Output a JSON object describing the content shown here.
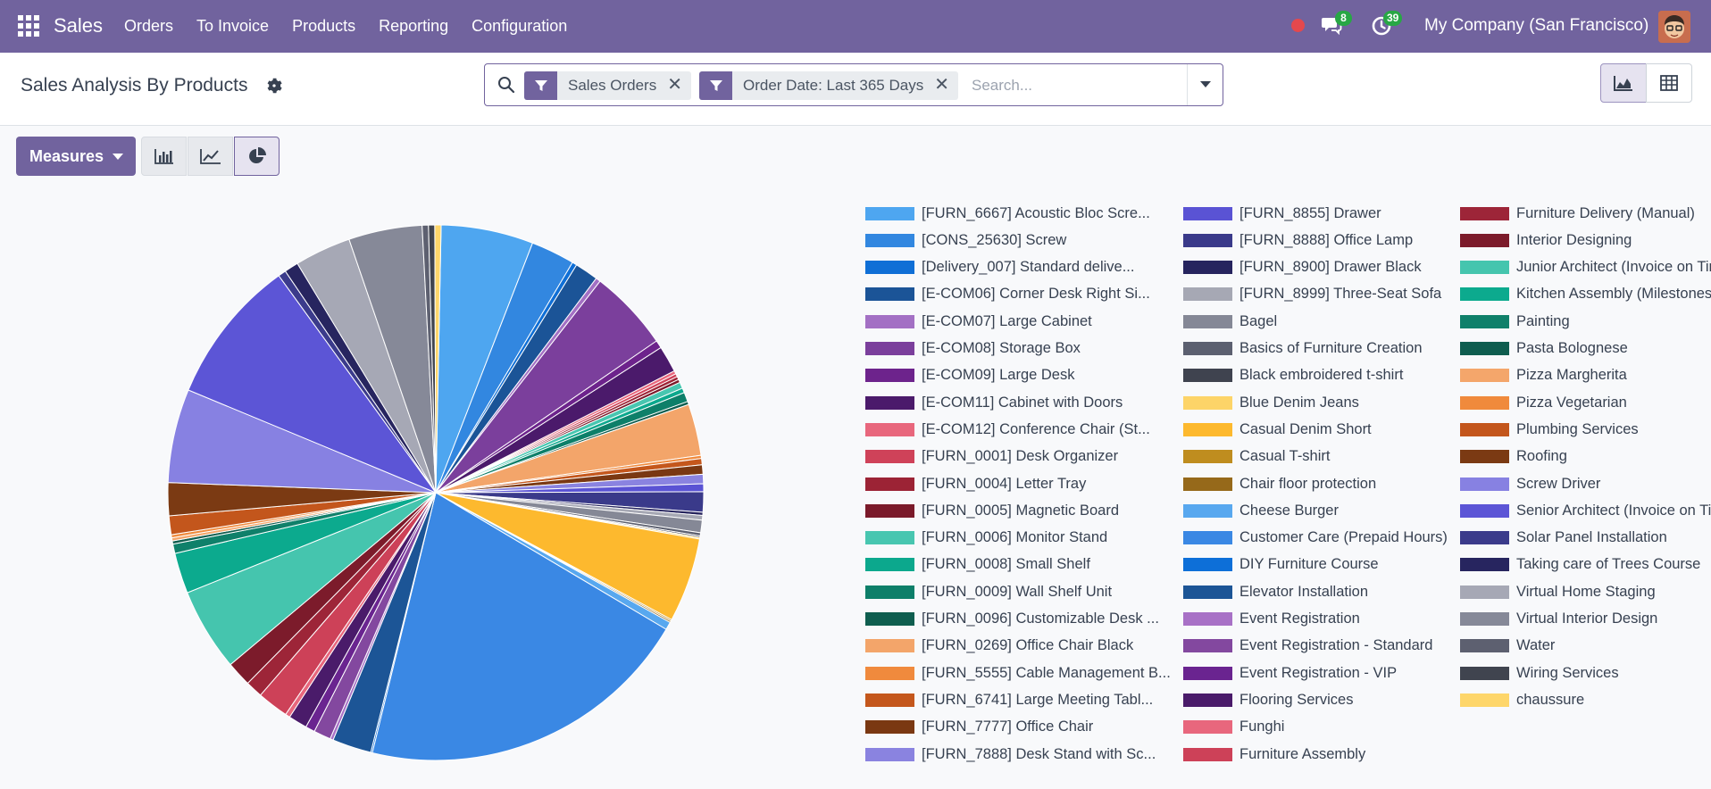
{
  "navbar": {
    "app_name": "Sales",
    "menu": [
      "Orders",
      "To Invoice",
      "Products",
      "Reporting",
      "Configuration"
    ],
    "messages_count": "8",
    "activities_count": "39",
    "company": "My Company (San Francisco)",
    "accent_color": "#71639e"
  },
  "control_panel": {
    "title": "Sales Analysis By Products",
    "facets": [
      {
        "label": "Sales Orders"
      },
      {
        "label": "Order Date: Last 365 Days"
      }
    ],
    "search_placeholder": "Search...",
    "views": [
      "graph",
      "pivot"
    ],
    "active_view": "graph"
  },
  "graph_toolbar": {
    "measures_label": "Measures",
    "chart_modes": [
      "bar",
      "line",
      "pie"
    ],
    "active_mode": "pie"
  },
  "chart_data": {
    "type": "pie",
    "legend_position": "right",
    "slices": [
      {
        "label": "[FURN_6667] Acoustic Bloc Scre...",
        "color": "#4ea6f0",
        "value": 5.9
      },
      {
        "label": "[CONS_25630] Screw",
        "color": "#3287e0",
        "value": 2.8
      },
      {
        "label": "[Delivery_007] Standard delive...",
        "color": "#0f6fd6",
        "value": 0.3
      },
      {
        "label": "[E-COM06] Corner Desk Right Si...",
        "color": "#1b5497",
        "value": 1.5
      },
      {
        "label": "[E-COM07] Large Cabinet",
        "color": "#a370c4",
        "value": 0.3
      },
      {
        "label": "[E-COM08] Storage Box",
        "color": "#7b3f9c",
        "value": 5.2
      },
      {
        "label": "[E-COM09] Large Desk",
        "color": "#6d238c",
        "value": 0.5
      },
      {
        "label": "[E-COM11] Cabinet with Doors",
        "color": "#4b1a6b",
        "value": 1.7
      },
      {
        "label": "[E-COM12] Conference Chair (St...",
        "color": "#e8677d",
        "value": 0.2
      },
      {
        "label": "[FURN_0001] Desk Organizer",
        "color": "#cf4259",
        "value": 0.2
      },
      {
        "label": "[FURN_0004] Letter Tray",
        "color": "#9c2335",
        "value": 0.2
      },
      {
        "label": "[FURN_0005] Magnetic Board",
        "color": "#7b1a2a",
        "value": 0.2
      },
      {
        "label": "[FURN_0006] Monitor Stand",
        "color": "#48c6b0",
        "value": 0.4
      },
      {
        "label": "[FURN_0008] Small Shelf",
        "color": "#0ca88d",
        "value": 0.3
      },
      {
        "label": "[FURN_0009] Wall Shelf Unit",
        "color": "#0d7f69",
        "value": 0.6
      },
      {
        "label": "[FURN_0096] Customizable Desk ...",
        "color": "#0f5e4f",
        "value": 0.2
      },
      {
        "label": "[FURN_0269] Office Chair Black",
        "color": "#f3a56a",
        "value": 3.3
      },
      {
        "label": "[FURN_5555] Cable Management B...",
        "color": "#f08a3d",
        "value": 0.2
      },
      {
        "label": "[FURN_6741] Large Meeting Tabl...",
        "color": "#c4571c",
        "value": 0.4
      },
      {
        "label": "[FURN_7777] Office Chair",
        "color": "#7a3812",
        "value": 0.6
      },
      {
        "label": "[FURN_7888] Desk Stand with Sc...",
        "color": "#8a83e0",
        "value": 0.6
      },
      {
        "label": "[FURN_8855] Drawer",
        "color": "#5a53d4",
        "value": 0.5
      },
      {
        "label": "[FURN_8888] Office Lamp",
        "color": "#3a3a8a",
        "value": 1.3
      },
      {
        "label": "[FURN_8900] Drawer Black",
        "color": "#26245e",
        "value": 0.2
      },
      {
        "label": "[FURN_8999] Three-Seat Sofa",
        "color": "#a6a8b4",
        "value": 0.3
      },
      {
        "label": "Bagel",
        "color": "#858896",
        "value": 0.8
      },
      {
        "label": "Basics of Furniture Creation",
        "color": "#5c6070",
        "value": 0.2
      },
      {
        "label": "Black embroidered t-shirt",
        "color": "#3f434f",
        "value": 0.1
      },
      {
        "label": "Blue Denim Jeans",
        "color": "#fdd468",
        "value": 0.1
      },
      {
        "label": "Casual Denim Short",
        "color": "#fdb92e",
        "value": 5.4
      },
      {
        "label": "Casual T-shirt",
        "color": "#bf8d1f",
        "value": 0.1
      },
      {
        "label": "Chair floor protection",
        "color": "#96691a",
        "value": 0.1
      },
      {
        "label": "Cheese Burger",
        "color": "#58a8ef",
        "value": 0.5
      },
      {
        "label": "Customer Care (Prepaid Hours)",
        "color": "#3a88e4",
        "value": 21.5
      },
      {
        "label": "DIY Furniture Course",
        "color": "#0d6fd8",
        "value": 0.1
      },
      {
        "label": "Elevator Installation",
        "color": "#1c5596",
        "value": 2.5
      },
      {
        "label": "Event Registration",
        "color": "#a871c6",
        "value": 0.2
      },
      {
        "label": "Event Registration - Standard",
        "color": "#83489f",
        "value": 1.1
      },
      {
        "label": "Event Registration - VIP",
        "color": "#6a2490",
        "value": 0.6
      },
      {
        "label": "Flooring Services",
        "color": "#4a1b6a",
        "value": 1.2
      },
      {
        "label": "Funghi",
        "color": "#e8677d",
        "value": 0.3
      },
      {
        "label": "Furniture Assembly",
        "color": "#cd4158",
        "value": 2.0
      },
      {
        "label": "Furniture Delivery (Manual)",
        "color": "#9d2538",
        "value": 1.1
      },
      {
        "label": "Interior Designing",
        "color": "#7c1b2b",
        "value": 1.6
      },
      {
        "label": "Junior Architect (Invoice on Timesheets)",
        "color": "#45c5ae",
        "value": 5.3
      },
      {
        "label": "Kitchen Assembly (Milestones)",
        "color": "#0caa8e",
        "value": 2.6
      },
      {
        "label": "Painting",
        "color": "#0f806a",
        "value": 0.6
      },
      {
        "label": "Pasta Bolognese",
        "color": "#0f5d4f",
        "value": 0.2
      },
      {
        "label": "Pizza Margherita",
        "color": "#f4a66b",
        "value": 0.2
      },
      {
        "label": "Pizza Vegetarian",
        "color": "#f08a3c",
        "value": 0.2
      },
      {
        "label": "Plumbing Services",
        "color": "#c3561c",
        "value": 1.2
      },
      {
        "label": "Roofing",
        "color": "#7b3a13",
        "value": 2.1
      },
      {
        "label": "Screw Driver",
        "color": "#8781e2",
        "value": 6.0
      },
      {
        "label": "Senior Architect (Invoice on Timesheets)",
        "color": "#5c55d6",
        "value": 9.3
      },
      {
        "label": "Solar Panel Installation",
        "color": "#3b3b8b",
        "value": 0.5
      },
      {
        "label": "Taking care of Trees Course",
        "color": "#27255f",
        "value": 0.9
      },
      {
        "label": "Virtual Home Staging",
        "color": "#a6a8b5",
        "value": 3.6
      },
      {
        "label": "Virtual Interior Design",
        "color": "#868998",
        "value": 4.7
      },
      {
        "label": "Water",
        "color": "#5d6070",
        "value": 0.4
      },
      {
        "label": "Wiring Services",
        "color": "#40444f",
        "value": 0.4
      },
      {
        "label": "chaussure",
        "color": "#fed66a",
        "value": 0.4
      }
    ]
  }
}
